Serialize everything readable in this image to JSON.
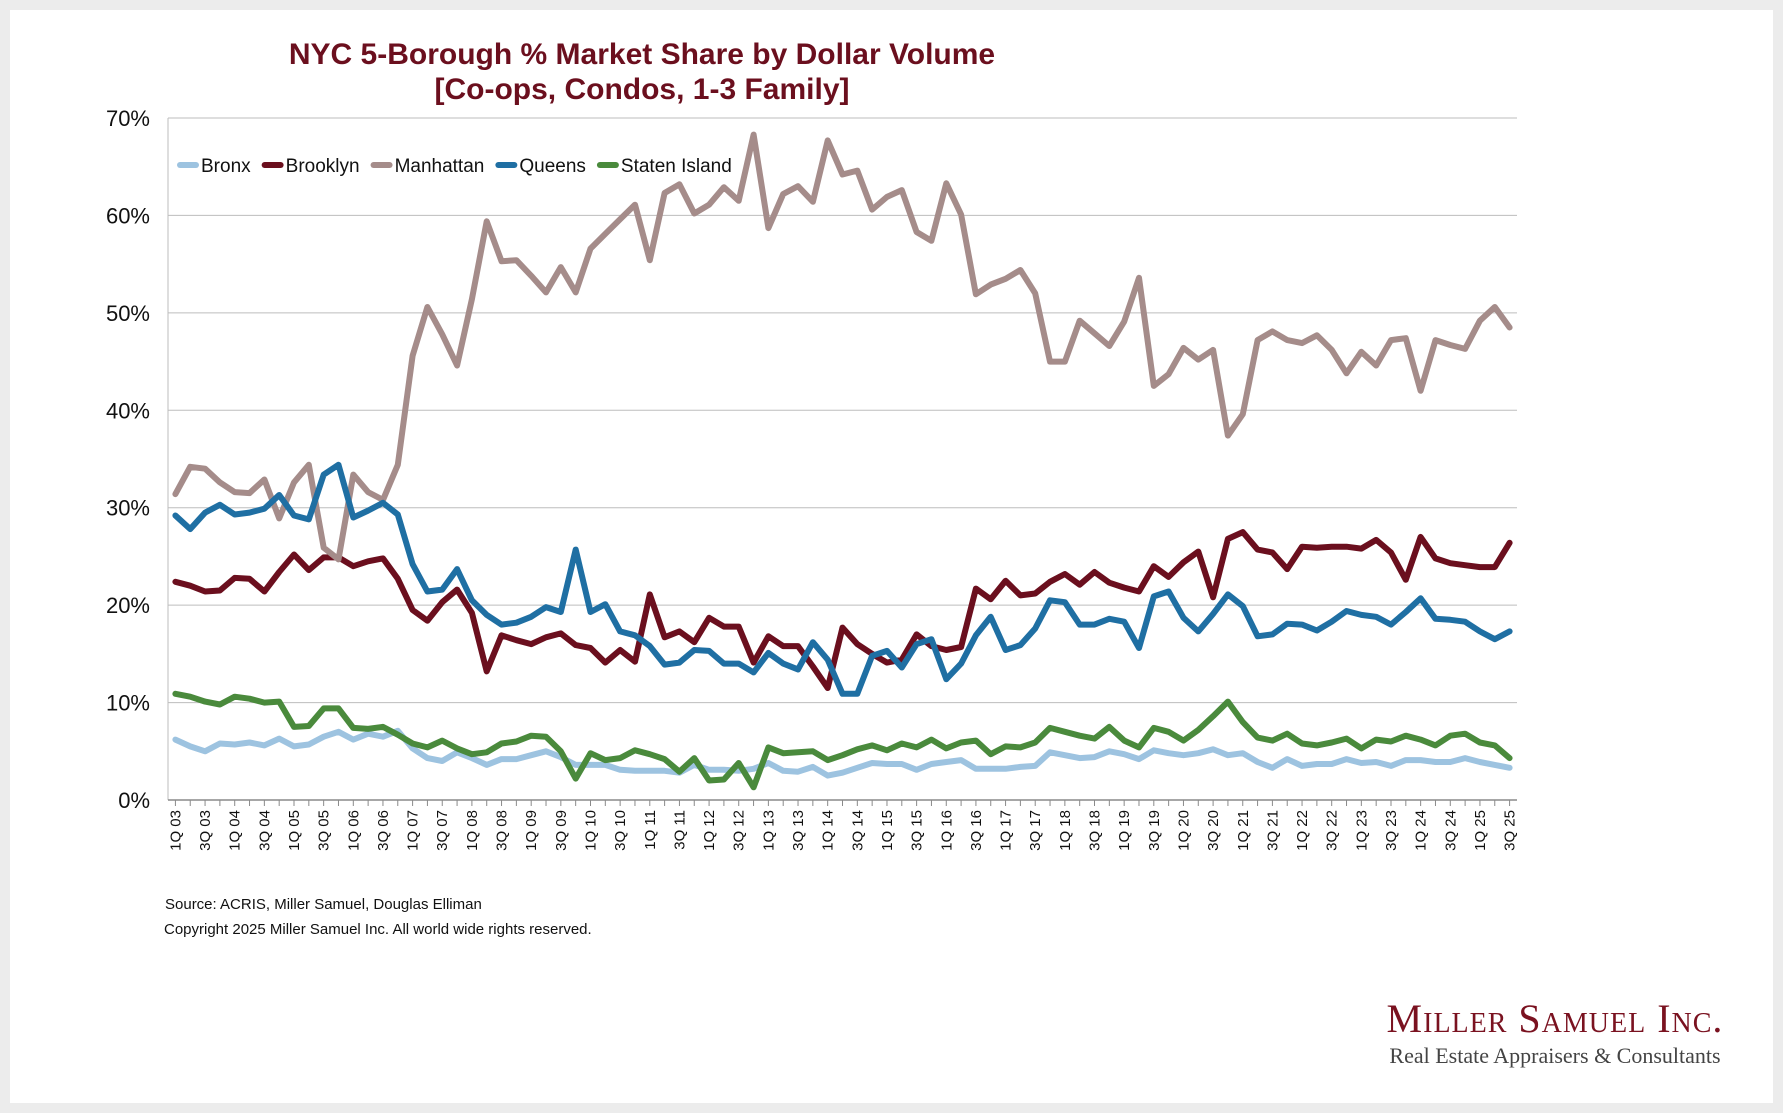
{
  "chart_data": {
    "type": "line",
    "title": [
      "NYC 5-Borough % Market Share by Dollar Volume",
      "[Co-ops, Condos, 1-3 Family]"
    ],
    "ylim": [
      0,
      70
    ],
    "yticks": [
      "0%",
      "10%",
      "20%",
      "30%",
      "40%",
      "50%",
      "60%",
      "70%"
    ],
    "grid": true,
    "legend": "top-left",
    "categories": [
      "1Q 03",
      "2Q 03",
      "3Q 03",
      "4Q 03",
      "1Q 04",
      "2Q 04",
      "3Q 04",
      "4Q 04",
      "1Q 05",
      "2Q 05",
      "3Q 05",
      "4Q 05",
      "1Q 06",
      "2Q 06",
      "3Q 06",
      "4Q 06",
      "1Q 07",
      "2Q 07",
      "3Q 07",
      "4Q 07",
      "1Q 08",
      "2Q 08",
      "3Q 08",
      "4Q 08",
      "1Q 09",
      "2Q 09",
      "3Q 09",
      "4Q 09",
      "1Q 10",
      "2Q 10",
      "3Q 10",
      "4Q 10",
      "1Q 11",
      "2Q 11",
      "3Q 11",
      "4Q 11",
      "1Q 12",
      "2Q 12",
      "3Q 12",
      "4Q 12",
      "1Q 13",
      "2Q 13",
      "3Q 13",
      "4Q 13",
      "1Q 14",
      "2Q 14",
      "3Q 14",
      "4Q 14",
      "1Q 15",
      "2Q 15",
      "3Q 15",
      "4Q 15",
      "1Q 16",
      "2Q 16",
      "3Q 16",
      "4Q 16",
      "1Q 17",
      "2Q 17",
      "3Q 17",
      "4Q 17",
      "1Q 18",
      "2Q 18",
      "3Q 18",
      "4Q 18",
      "1Q 19",
      "2Q 19",
      "3Q 19",
      "4Q 19",
      "1Q 20",
      "2Q 20",
      "3Q 20",
      "4Q 20",
      "1Q 21",
      "2Q 21",
      "3Q 21",
      "4Q 21",
      "1Q 22",
      "2Q 22",
      "3Q 22",
      "4Q 22",
      "1Q 23",
      "2Q 23",
      "3Q 23",
      "4Q 23",
      "1Q 24",
      "2Q 24",
      "3Q 24",
      "4Q 24",
      "1Q 25",
      "2Q 25",
      "3Q 25"
    ],
    "xtick_labels": [
      "1Q 03",
      "3Q 03",
      "1Q 04",
      "3Q 04",
      "1Q 05",
      "3Q 05",
      "1Q 06",
      "3Q 06",
      "1Q 07",
      "3Q 07",
      "1Q 08",
      "3Q 08",
      "1Q 09",
      "3Q 09",
      "1Q 10",
      "3Q 10",
      "1Q 11",
      "3Q 11",
      "1Q 12",
      "3Q 12",
      "1Q 13",
      "3Q 13",
      "1Q 14",
      "3Q 14",
      "1Q 15",
      "3Q 15",
      "1Q 16",
      "3Q 16",
      "1Q 17",
      "3Q 17",
      "1Q 18",
      "3Q 18",
      "1Q 19",
      "3Q 19",
      "1Q 20",
      "3Q 20",
      "1Q 21",
      "3Q 21",
      "1Q 22",
      "3Q 22",
      "1Q 23",
      "3Q 23",
      "1Q 24",
      "3Q 24",
      "1Q 25",
      "3Q 25"
    ],
    "series": [
      {
        "name": "Bronx",
        "color": "#9dc3e0",
        "values": [
          6.2,
          5.5,
          5.0,
          5.8,
          5.7,
          5.9,
          5.6,
          6.3,
          5.5,
          5.7,
          6.5,
          7.0,
          6.2,
          6.8,
          6.5,
          7.1,
          5.3,
          4.3,
          4.0,
          4.9,
          4.3,
          3.6,
          4.2,
          4.2,
          4.6,
          5.0,
          4.4,
          3.6,
          3.6,
          3.6,
          3.1,
          3.0,
          3.0,
          3.0,
          2.8,
          3.6,
          3.1,
          3.1,
          3.0,
          3.2,
          3.8,
          3.0,
          2.9,
          3.4,
          2.5,
          2.8,
          3.3,
          3.8,
          3.7,
          3.7,
          3.1,
          3.7,
          3.9,
          4.1,
          3.2,
          3.2,
          3.2,
          3.4,
          3.5,
          4.9,
          4.6,
          4.3,
          4.4,
          5.0,
          4.7,
          4.2,
          5.1,
          4.8,
          4.6,
          4.8,
          5.2,
          4.6,
          4.8,
          3.9,
          3.3,
          4.2,
          3.5,
          3.7,
          3.7,
          4.2,
          3.8,
          3.9,
          3.5,
          4.1,
          4.1,
          3.9,
          3.9,
          4.3,
          3.9,
          3.6,
          3.3
        ]
      },
      {
        "name": "Brooklyn",
        "color": "#6b0f1e",
        "values": [
          22.4,
          22.0,
          21.4,
          21.5,
          22.8,
          22.7,
          21.4,
          23.4,
          25.2,
          23.6,
          24.9,
          24.9,
          24.0,
          24.5,
          24.8,
          22.7,
          19.5,
          18.4,
          20.3,
          21.6,
          19.2,
          13.2,
          16.9,
          16.4,
          16.0,
          16.7,
          17.1,
          15.9,
          15.6,
          14.1,
          15.4,
          14.2,
          21.1,
          16.7,
          17.3,
          16.2,
          18.7,
          17.8,
          17.8,
          14.1,
          16.8,
          15.8,
          15.8,
          13.7,
          11.5,
          17.7,
          16.0,
          15.0,
          14.1,
          14.4,
          17.0,
          15.8,
          15.4,
          15.7,
          21.7,
          20.6,
          22.5,
          21.0,
          21.2,
          22.4,
          23.2,
          22.1,
          23.4,
          22.3,
          21.8,
          21.4,
          24.0,
          22.9,
          24.4,
          25.5,
          20.8,
          26.8,
          27.5,
          25.7,
          25.4,
          23.7,
          26.0,
          25.9,
          26.0,
          26.0,
          25.8,
          26.7,
          25.4,
          22.6,
          27.0,
          24.8,
          24.3,
          24.1,
          23.9,
          23.9,
          26.4
        ]
      },
      {
        "name": "Manhattan",
        "color": "#a58c8a",
        "values": [
          31.4,
          34.2,
          34.0,
          32.6,
          31.6,
          31.5,
          32.9,
          28.9,
          32.6,
          34.4,
          25.9,
          24.7,
          33.4,
          31.6,
          30.8,
          34.4,
          45.6,
          50.6,
          47.8,
          44.6,
          51.4,
          59.4,
          55.3,
          55.4,
          53.8,
          52.1,
          54.7,
          52.1,
          56.6,
          58.1,
          59.6,
          61.1,
          55.4,
          62.3,
          63.2,
          60.2,
          61.1,
          62.9,
          61.5,
          68.3,
          58.7,
          62.2,
          63.0,
          61.4,
          67.7,
          64.2,
          64.6,
          60.6,
          61.9,
          62.6,
          58.3,
          57.4,
          63.3,
          60.1,
          51.9,
          52.9,
          53.5,
          54.4,
          52.0,
          45.0,
          45.0,
          49.2,
          47.9,
          46.6,
          49.1,
          53.6,
          42.5,
          43.7,
          46.4,
          45.2,
          46.2,
          37.4,
          39.6,
          47.2,
          48.1,
          47.2,
          46.9,
          47.7,
          46.2,
          43.8,
          46.0,
          44.6,
          47.2,
          47.4,
          42.0,
          47.2,
          46.7,
          46.3,
          49.2,
          50.6,
          48.5
        ]
      },
      {
        "name": "Queens",
        "color": "#1f6fa3",
        "values": [
          29.2,
          27.8,
          29.5,
          30.3,
          29.3,
          29.5,
          29.9,
          31.3,
          29.2,
          28.8,
          33.4,
          34.4,
          29.0,
          29.7,
          30.5,
          29.3,
          24.2,
          21.4,
          21.6,
          23.7,
          20.5,
          19.0,
          18.0,
          18.2,
          18.8,
          19.8,
          19.3,
          25.7,
          19.3,
          20.1,
          17.3,
          16.9,
          15.8,
          13.9,
          14.1,
          15.4,
          15.3,
          14.0,
          14.0,
          13.1,
          15.1,
          14.0,
          13.4,
          16.2,
          14.4,
          10.9,
          10.9,
          14.8,
          15.3,
          13.6,
          16.0,
          16.5,
          12.4,
          14.0,
          16.9,
          18.8,
          15.4,
          15.9,
          17.6,
          20.5,
          20.3,
          18.0,
          18.0,
          18.6,
          18.3,
          15.6,
          20.9,
          21.4,
          18.7,
          17.3,
          19.1,
          21.1,
          19.9,
          16.8,
          17.0,
          18.1,
          18.0,
          17.4,
          18.3,
          19.4,
          19.0,
          18.8,
          18.0,
          19.3,
          20.7,
          18.6,
          18.5,
          18.3,
          17.3,
          16.5,
          17.3
        ]
      },
      {
        "name": "Staten Island",
        "color": "#4a8a3c",
        "values": [
          10.9,
          10.6,
          10.1,
          9.8,
          10.6,
          10.4,
          10.0,
          10.1,
          7.5,
          7.6,
          9.4,
          9.4,
          7.4,
          7.3,
          7.5,
          6.7,
          5.8,
          5.4,
          6.1,
          5.3,
          4.7,
          4.9,
          5.8,
          6.0,
          6.6,
          6.5,
          5.0,
          2.2,
          4.8,
          4.1,
          4.3,
          5.1,
          4.7,
          4.2,
          2.9,
          4.3,
          2.0,
          2.1,
          3.8,
          1.3,
          5.4,
          4.8,
          4.9,
          5.0,
          4.1,
          4.6,
          5.2,
          5.6,
          5.1,
          5.8,
          5.4,
          6.2,
          5.3,
          5.9,
          6.1,
          4.7,
          5.5,
          5.4,
          5.9,
          7.4,
          7.0,
          6.6,
          6.3,
          7.5,
          6.1,
          5.4,
          7.4,
          7.0,
          6.1,
          7.2,
          8.6,
          10.1,
          8.0,
          6.4,
          6.1,
          6.8,
          5.8,
          5.6,
          5.9,
          6.3,
          5.3,
          6.2,
          6.0,
          6.6,
          6.2,
          5.6,
          6.6,
          6.8,
          5.9,
          5.6,
          4.3
        ]
      }
    ]
  },
  "footer": {
    "source": "Source: ACRIS, Miller Samuel, Douglas Elliman",
    "copyright": "Copyright 2025 Miller Samuel Inc.  All world wide rights reserved."
  },
  "logo": {
    "name": "Miller Samuel Inc.",
    "tagline": "Real Estate Appraisers & Consultants"
  }
}
